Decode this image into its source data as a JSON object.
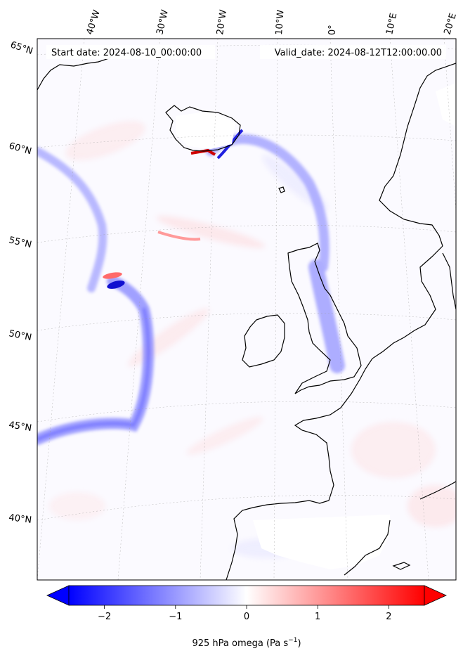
{
  "header": {
    "start_date": "Start date: 2024-08-10_00:00:00",
    "valid_date": "Valid_date: 2024-08-12T12:00:00.00"
  },
  "longitude_labels": [
    "40°W",
    "30°W",
    "20°W",
    "10°W",
    "0°",
    "10°E",
    "20°E"
  ],
  "latitude_labels": [
    "65°N",
    "60°N",
    "55°N",
    "50°N",
    "45°N",
    "40°N"
  ],
  "colorbar": {
    "label": "925 hPa omega (Pa s",
    "label_exp": "−1",
    "label_end": ")",
    "ticks": [
      "−2",
      "−1",
      "0",
      "1",
      "2"
    ],
    "tick_values": [
      -2,
      -1,
      0,
      1,
      2
    ],
    "range": [
      -2.5,
      2.5
    ],
    "extend": "both"
  },
  "colors": {
    "negative": "#0000ff",
    "positive": "#ff0000",
    "neutral": "#ffffff",
    "coastline": "#000000",
    "land_mask": "#ffffff"
  },
  "icons": [
    "colorbar-min-arrow",
    "colorbar-max-arrow"
  ]
}
